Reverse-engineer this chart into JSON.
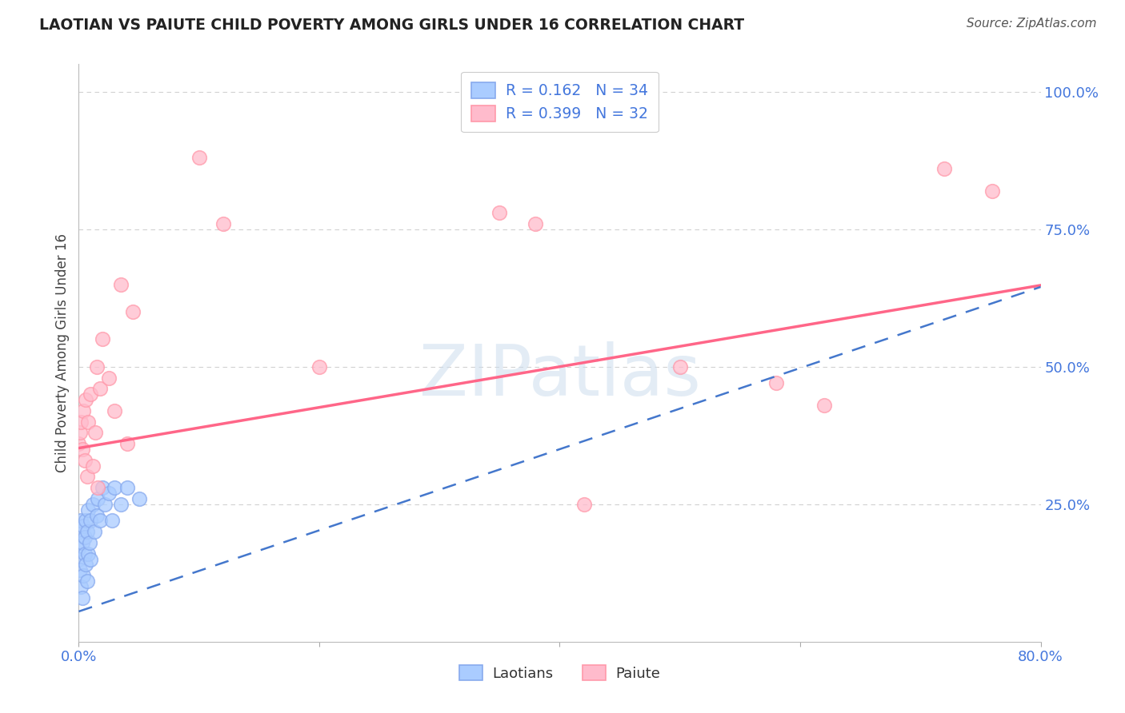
{
  "title": "LAOTIAN VS PAIUTE CHILD POVERTY AMONG GIRLS UNDER 16 CORRELATION CHART",
  "source": "Source: ZipAtlas.com",
  "ylabel": "Child Poverty Among Girls Under 16",
  "legend_r1": "R = 0.162",
  "legend_n1": "N = 34",
  "legend_r2": "R = 0.399",
  "legend_n2": "N = 32",
  "legend_label1": "Laotians",
  "legend_label2": "Paiute",
  "blue_face_color": "#AACCFF",
  "blue_edge_color": "#88AAEE",
  "pink_face_color": "#FFBBCC",
  "pink_edge_color": "#FF99AA",
  "blue_line_color": "#4477CC",
  "pink_line_color": "#FF6688",
  "axis_label_color": "#4477DD",
  "title_color": "#222222",
  "source_color": "#555555",
  "grid_color": "#CCCCCC",
  "background_color": "#FFFFFF",
  "watermark_text": "ZIPatlas",
  "laotian_x": [
    0.0,
    0.0,
    0.001,
    0.001,
    0.002,
    0.002,
    0.003,
    0.003,
    0.004,
    0.004,
    0.005,
    0.005,
    0.006,
    0.006,
    0.007,
    0.007,
    0.008,
    0.008,
    0.009,
    0.01,
    0.01,
    0.012,
    0.013,
    0.015,
    0.016,
    0.018,
    0.02,
    0.022,
    0.025,
    0.028,
    0.03,
    0.035,
    0.04,
    0.05
  ],
  "laotian_y": [
    0.17,
    0.15,
    0.2,
    0.13,
    0.22,
    0.1,
    0.18,
    0.08,
    0.21,
    0.12,
    0.16,
    0.19,
    0.14,
    0.22,
    0.2,
    0.11,
    0.24,
    0.16,
    0.18,
    0.22,
    0.15,
    0.25,
    0.2,
    0.23,
    0.26,
    0.22,
    0.28,
    0.25,
    0.27,
    0.22,
    0.28,
    0.25,
    0.28,
    0.26
  ],
  "paiute_x": [
    0.0,
    0.001,
    0.002,
    0.003,
    0.004,
    0.005,
    0.006,
    0.007,
    0.008,
    0.01,
    0.012,
    0.014,
    0.015,
    0.016,
    0.018,
    0.02,
    0.025,
    0.03,
    0.035,
    0.04,
    0.045,
    0.1,
    0.12,
    0.2,
    0.35,
    0.38,
    0.42,
    0.5,
    0.58,
    0.62,
    0.72,
    0.76
  ],
  "paiute_y": [
    0.36,
    0.38,
    0.4,
    0.35,
    0.42,
    0.33,
    0.44,
    0.3,
    0.4,
    0.45,
    0.32,
    0.38,
    0.5,
    0.28,
    0.46,
    0.55,
    0.48,
    0.42,
    0.65,
    0.36,
    0.6,
    0.88,
    0.76,
    0.5,
    0.78,
    0.76,
    0.25,
    0.5,
    0.47,
    0.43,
    0.86,
    0.82
  ],
  "xlim_min": 0.0,
  "xlim_max": 0.8,
  "ylim_min": 0.0,
  "ylim_max": 1.05,
  "pink_trend_x0": 0.0,
  "pink_trend_y0": 0.352,
  "pink_trend_x1": 0.8,
  "pink_trend_y1": 0.648,
  "blue_trend_x0": 0.0,
  "blue_trend_y0": 0.055,
  "blue_trend_x1": 0.8,
  "blue_trend_y1": 0.645
}
